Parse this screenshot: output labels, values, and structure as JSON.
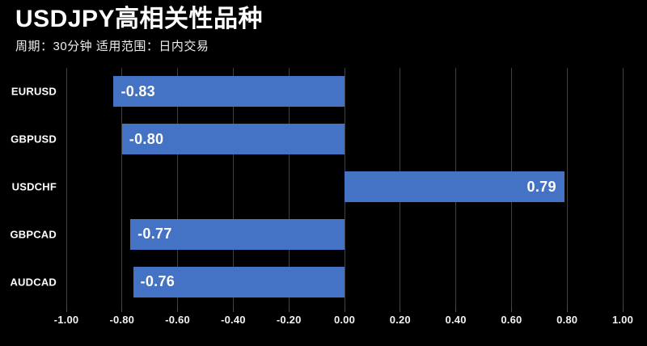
{
  "header": {
    "title": "USDJPY高相关性品种",
    "subtitle": "周期：30分钟 适用范围：日内交易"
  },
  "colors": {
    "background": "#000000",
    "bar_fill": "#4472C4",
    "gridline": "#3f3f3f",
    "text": "#ffffff"
  },
  "chart_data": {
    "type": "bar",
    "orientation": "horizontal",
    "title": "USDJPY高相关性品种",
    "subtitle": "周期：30分钟 适用范围：日内交易",
    "categories": [
      "EURUSD",
      "GBPUSD",
      "USDCHF",
      "GBPCAD",
      "AUDCAD"
    ],
    "values": [
      -0.83,
      -0.8,
      0.79,
      -0.77,
      -0.76
    ],
    "value_labels": [
      "-0.83",
      "-0.80",
      "0.79",
      "-0.77",
      "-0.76"
    ],
    "xlim": [
      -1.0,
      1.0
    ],
    "x_ticks": [
      "-1.00",
      "-0.80",
      "-0.60",
      "-0.40",
      "-0.20",
      "0.00",
      "0.20",
      "0.40",
      "0.60",
      "0.80",
      "1.00"
    ],
    "xlabel": "",
    "ylabel": "",
    "grid": "vertical-on",
    "legend": "none"
  }
}
